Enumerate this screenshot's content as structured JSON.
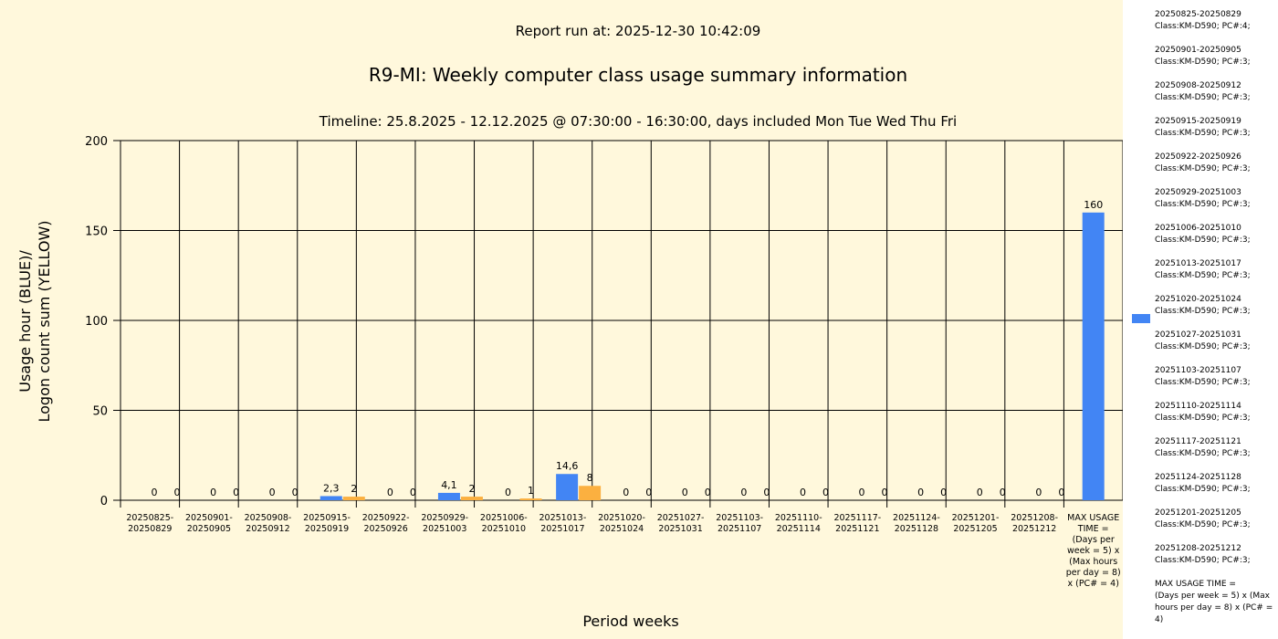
{
  "chart_data": {
    "type": "bar",
    "header": "Report run at: 2025-12-30 10:42:09",
    "title": "R9-MI: Weekly computer class usage summary information",
    "subtitle": "Timeline:  25.8.2025  - 12.12.2025  @  07:30:00 -  16:30:00, days included Mon Tue Wed Thu Fri",
    "xlabel": "Period weeks",
    "ylabel": [
      "Usage hour (BLUE)/",
      "Logon count sum (YELLOW)"
    ],
    "ylim": [
      0,
      200
    ],
    "yticks": [
      "0",
      "50",
      "100",
      "150",
      "200"
    ],
    "categories": [
      [
        "20250825-",
        "20250829"
      ],
      [
        "20250901-",
        "20250905"
      ],
      [
        "20250908-",
        "20250912"
      ],
      [
        "20250915-",
        "20250919"
      ],
      [
        "20250922-",
        "20250926"
      ],
      [
        "20250929-",
        "20251003"
      ],
      [
        "20251006-",
        "20251010"
      ],
      [
        "20251013-",
        "20251017"
      ],
      [
        "20251020-",
        "20251024"
      ],
      [
        "20251027-",
        "20251031"
      ],
      [
        "20251103-",
        "20251107"
      ],
      [
        "20251110-",
        "20251114"
      ],
      [
        "20251117-",
        "20251121"
      ],
      [
        "20251124-",
        "20251128"
      ],
      [
        "20251201-",
        "20251205"
      ],
      [
        "20251208-",
        "20251212"
      ],
      [
        "MAX USAGE",
        "TIME =",
        "(Days per",
        "week = 5) x",
        "(Max hours",
        "per day = 8)",
        "x (PC# = 4)"
      ]
    ],
    "series": [
      {
        "color": "#4285f4",
        "values": [
          0,
          0,
          0,
          2.3,
          0,
          4.1,
          0,
          14.6,
          0,
          0,
          0,
          0,
          0,
          0,
          0,
          0,
          160
        ],
        "labels": [
          "0",
          "0",
          "0",
          "2,3",
          "0",
          "4,1",
          "0",
          "14,6",
          "0",
          "0",
          "0",
          "0",
          "0",
          "0",
          "0",
          "0",
          "160"
        ]
      },
      {
        "color": "#fbb040",
        "values": [
          0,
          0,
          0,
          2,
          0,
          2,
          1,
          8,
          0,
          0,
          0,
          0,
          0,
          0,
          0,
          0,
          null
        ],
        "labels": [
          "0",
          "0",
          "0",
          "2",
          "0",
          "2",
          "1",
          "8",
          "0",
          "0",
          "0",
          "0",
          "0",
          "0",
          "0",
          "0",
          null
        ]
      }
    ],
    "grid": true
  },
  "legend": {
    "items": [
      "20250825-20250829\nClass:KM-D590; PC#:4;",
      "20250901-20250905\nClass:KM-D590; PC#:3;",
      "20250908-20250912\nClass:KM-D590; PC#:3;",
      "20250915-20250919\nClass:KM-D590; PC#:3;",
      "20250922-20250926\nClass:KM-D590; PC#:3;",
      "20250929-20251003\nClass:KM-D590; PC#:3;",
      "20251006-20251010\nClass:KM-D590; PC#:3;",
      "20251013-20251017\nClass:KM-D590; PC#:3;",
      "20251020-20251024\nClass:KM-D590; PC#:3;",
      "20251027-20251031\nClass:KM-D590; PC#:3;",
      "20251103-20251107\nClass:KM-D590; PC#:3;",
      "20251110-20251114\nClass:KM-D590; PC#:3;",
      "20251117-20251121\nClass:KM-D590; PC#:3;",
      "20251124-20251128\nClass:KM-D590; PC#:3;",
      "20251201-20251205\nClass:KM-D590; PC#:3;",
      "20251208-20251212\nClass:KM-D590; PC#:3;",
      "MAX USAGE TIME =\n (Days per week = 5) x (Max hours per day = 8) x (PC# = 4)"
    ]
  }
}
